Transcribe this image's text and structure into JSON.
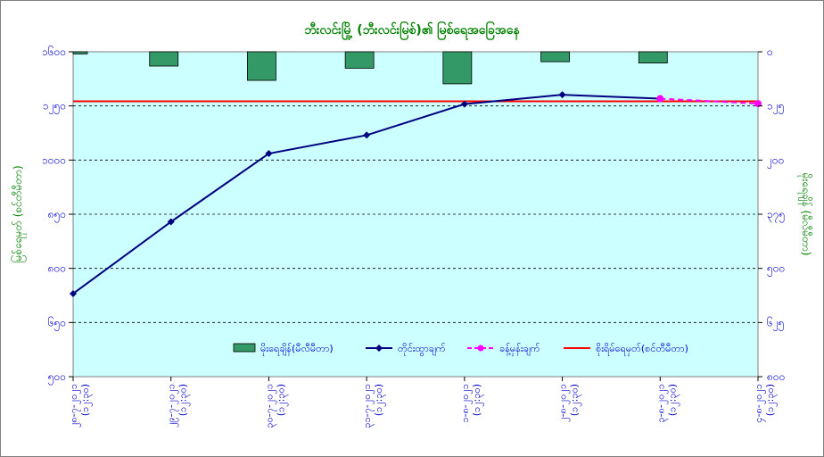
{
  "chart_data": {
    "type": "bar+line",
    "title": "ဘီးလင်းမြို့ (ဘီးလင်းမြစ်)၏ မြစ်ရေအခြေအနေ",
    "y_left_label": "မြစ်ရေမှတ် (စင်တီမီတာ)",
    "y_right_label": "မိုးရေချိန် (မီလီမီတာ)",
    "y_left_ticks": [
      "၁၆၀၀",
      "၁၂၅၀",
      "၁၀၀၀",
      "၈၅၀",
      "၈၀၀",
      "၆၅၀",
      "၅၀၀"
    ],
    "y_left_range": [
      500,
      1600
    ],
    "y_right_ticks": [
      "၀",
      "၁၂၅",
      "၂၀၀",
      "၃၇၅",
      "၅၀၀",
      "၆၂၅",
      "၈၀၀"
    ],
    "y_right_range": [
      0,
      800
    ],
    "categories": [
      "၂၈-၇-၂၀၂၁ (၁၂:၃၀)",
      "၂၉-၇-၂၀၂၁ (၁၂:၃၀)",
      "၃၀-၇-၂၀၂၁ (၁၂:၃၀)",
      "၃၁-၇-၂၀၂၁ (၁၂:၃၀)",
      "၁-၈-၂၀၂၁ (၁၂:၃၀)",
      "၂-၈-၂၀၂၁ (၁၂:၃၀)",
      "၃-၈-၂၀၂၁ (၁၂:၃၀)",
      "၄-၈-၂၀၂၁ (၁၂:၃၀)"
    ],
    "series": [
      {
        "name": "မိုးရေချိန်(မီလီမီတာ)",
        "kind": "bar",
        "axis": "right",
        "color": "#339966",
        "values": [
          5,
          33,
          66,
          38,
          74,
          23,
          26,
          null
        ]
      },
      {
        "name": "တိုင်းထွာချက်",
        "kind": "line",
        "axis": "left",
        "color": "#000080",
        "values": [
          730,
          843,
          1030,
          1115,
          1262,
          1322,
          1297,
          null
        ]
      },
      {
        "name": "ခန့်မှန်းချက်",
        "kind": "line-dashed",
        "axis": "left",
        "color": "#ff00ff",
        "values": [
          null,
          null,
          null,
          null,
          null,
          null,
          1297,
          1265
        ]
      },
      {
        "name": "စိုးရိမ်ရေမှတ်(စင်တီမီတာ)",
        "kind": "hline",
        "axis": "left",
        "color": "#ff0000",
        "value": 1280
      }
    ],
    "grid": true,
    "legend_position": "bottom-inside"
  }
}
